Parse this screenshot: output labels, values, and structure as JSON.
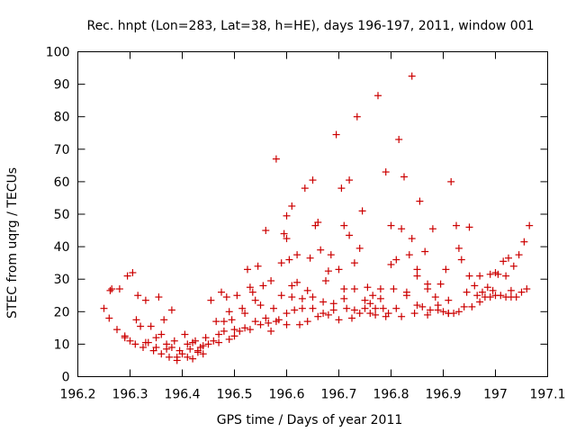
{
  "chart_data": {
    "type": "scatter",
    "title": "Rec. hnpt (Lon=283, Lat=38, h=HE), days 196-197, 2011, window 001",
    "xlabel": "GPS time / Days of year 2011",
    "ylabel": "STEC from uqrg / TECUs",
    "xlim": [
      196.2,
      197.1
    ],
    "ylim": [
      0,
      100
    ],
    "x_ticks": [
      196.2,
      196.3,
      196.4,
      196.5,
      196.6,
      196.7,
      196.8,
      196.9,
      197,
      197.1
    ],
    "x_tick_labels": [
      "196.2",
      "196.3",
      "196.4",
      "196.5",
      "196.6",
      "196.7",
      "196.8",
      "196.9",
      "197",
      "197.1"
    ],
    "y_ticks": [
      0,
      10,
      20,
      30,
      40,
      50,
      60,
      70,
      80,
      90,
      100
    ],
    "y_tick_labels": [
      "0",
      "10",
      "20",
      "30",
      "40",
      "50",
      "60",
      "70",
      "80",
      "90",
      "100"
    ],
    "grid": false,
    "legend": "none",
    "marker": "+",
    "marker_color": "#cc0000",
    "points": [
      [
        196.25,
        21
      ],
      [
        196.26,
        18
      ],
      [
        196.265,
        27
      ],
      [
        196.275,
        14.5
      ],
      [
        196.28,
        27
      ],
      [
        196.29,
        12
      ],
      [
        196.295,
        31
      ],
      [
        196.3,
        11
      ],
      [
        196.305,
        32
      ],
      [
        196.31,
        10
      ],
      [
        196.315,
        25
      ],
      [
        196.32,
        15.5
      ],
      [
        196.325,
        9
      ],
      [
        196.33,
        23.5
      ],
      [
        196.335,
        10.5
      ],
      [
        196.34,
        15.5
      ],
      [
        196.345,
        8
      ],
      [
        196.35,
        12
      ],
      [
        196.355,
        24.5
      ],
      [
        196.36,
        7
      ],
      [
        196.365,
        17.5
      ],
      [
        196.37,
        10
      ],
      [
        196.375,
        6
      ],
      [
        196.38,
        20.5
      ],
      [
        196.385,
        11
      ],
      [
        196.39,
        5
      ],
      [
        196.395,
        8
      ],
      [
        196.4,
        7
      ],
      [
        196.405,
        13
      ],
      [
        196.41,
        6
      ],
      [
        196.415,
        8.5
      ],
      [
        196.42,
        5.5
      ],
      [
        196.425,
        11
      ],
      [
        196.43,
        7.5
      ],
      [
        196.435,
        9
      ],
      [
        196.44,
        7
      ],
      [
        196.445,
        12
      ],
      [
        196.45,
        10
      ],
      [
        196.455,
        23.5
      ],
      [
        196.46,
        11
      ],
      [
        196.465,
        17
      ],
      [
        196.47,
        13
      ],
      [
        196.475,
        26
      ],
      [
        196.48,
        14
      ],
      [
        196.485,
        24.5
      ],
      [
        196.49,
        11.5
      ],
      [
        196.495,
        17.5
      ],
      [
        196.5,
        12.5
      ],
      [
        196.505,
        25
      ],
      [
        196.51,
        14
      ],
      [
        196.515,
        21
      ],
      [
        196.52,
        15
      ],
      [
        196.525,
        33
      ],
      [
        196.53,
        14.5
      ],
      [
        196.535,
        26
      ],
      [
        196.54,
        17
      ],
      [
        196.545,
        34
      ],
      [
        196.55,
        16
      ],
      [
        196.555,
        28
      ],
      [
        196.56,
        45
      ],
      [
        196.565,
        16.5
      ],
      [
        196.57,
        29.5
      ],
      [
        196.575,
        21
      ],
      [
        196.58,
        67
      ],
      [
        196.585,
        17.5
      ],
      [
        196.59,
        25
      ],
      [
        196.595,
        44
      ],
      [
        196.6,
        16
      ],
      [
        196.605,
        36
      ],
      [
        196.61,
        52.5
      ],
      [
        196.615,
        20.5
      ],
      [
        196.62,
        29
      ],
      [
        196.625,
        16
      ],
      [
        196.63,
        24
      ],
      [
        196.635,
        58
      ],
      [
        196.64,
        17
      ],
      [
        196.645,
        36.5
      ],
      [
        196.65,
        21
      ],
      [
        196.655,
        46.5
      ],
      [
        196.66,
        18.5
      ],
      [
        196.665,
        39
      ],
      [
        196.67,
        23
      ],
      [
        196.675,
        29.5
      ],
      [
        196.68,
        19
      ],
      [
        196.685,
        37.5
      ],
      [
        196.69,
        20.5
      ],
      [
        196.695,
        74.5
      ],
      [
        196.7,
        17.5
      ],
      [
        196.705,
        58
      ],
      [
        196.71,
        27
      ],
      [
        196.715,
        21
      ],
      [
        196.72,
        43.5
      ],
      [
        196.725,
        18
      ],
      [
        196.73,
        27
      ],
      [
        196.735,
        80
      ],
      [
        196.74,
        19.5
      ],
      [
        196.745,
        51
      ],
      [
        196.75,
        21
      ],
      [
        196.755,
        27.5
      ],
      [
        196.76,
        19.5
      ],
      [
        196.765,
        25
      ],
      [
        196.77,
        19
      ],
      [
        196.775,
        86.5
      ],
      [
        196.78,
        24
      ],
      [
        196.785,
        21
      ],
      [
        196.79,
        63
      ],
      [
        196.795,
        19.5
      ],
      [
        196.8,
        46.5
      ],
      [
        196.805,
        27
      ],
      [
        196.81,
        36
      ],
      [
        196.815,
        73
      ],
      [
        196.82,
        18.5
      ],
      [
        196.825,
        61.5
      ],
      [
        196.83,
        26
      ],
      [
        196.835,
        37.5
      ],
      [
        196.84,
        92.5
      ],
      [
        196.845,
        19.5
      ],
      [
        196.85,
        31
      ],
      [
        196.855,
        54
      ],
      [
        196.86,
        21.5
      ],
      [
        196.865,
        38.5
      ],
      [
        196.87,
        27
      ],
      [
        196.875,
        20.5
      ],
      [
        196.88,
        45.5
      ],
      [
        196.885,
        24.5
      ],
      [
        196.89,
        20.5
      ],
      [
        196.895,
        28.5
      ],
      [
        196.9,
        20
      ],
      [
        196.905,
        33
      ],
      [
        196.91,
        19.5
      ],
      [
        196.915,
        60
      ],
      [
        196.92,
        19.5
      ],
      [
        196.925,
        46.5
      ],
      [
        196.93,
        20
      ],
      [
        196.935,
        36
      ],
      [
        196.94,
        21.5
      ],
      [
        196.945,
        26
      ],
      [
        196.95,
        31
      ],
      [
        196.955,
        21.5
      ],
      [
        196.96,
        28
      ],
      [
        196.965,
        25
      ],
      [
        196.97,
        31
      ],
      [
        196.975,
        26
      ],
      [
        196.98,
        24.5
      ],
      [
        196.985,
        27.5
      ],
      [
        196.99,
        24.5
      ],
      [
        196.995,
        26.5
      ],
      [
        197.0,
        25
      ],
      [
        197.005,
        31.5
      ],
      [
        197.01,
        25
      ],
      [
        197.015,
        35.5
      ],
      [
        197.02,
        24.5
      ],
      [
        197.025,
        36.5
      ],
      [
        197.03,
        24.5
      ],
      [
        197.035,
        34
      ],
      [
        197.04,
        24.5
      ],
      [
        197.045,
        37.5
      ],
      [
        197.05,
        26
      ],
      [
        197.055,
        41.5
      ],
      [
        197.06,
        27
      ],
      [
        197.065,
        46.5
      ],
      [
        196.262,
        26.5
      ],
      [
        196.312,
        17.5
      ],
      [
        196.36,
        13
      ],
      [
        196.37,
        8.5
      ],
      [
        196.39,
        6
      ],
      [
        196.41,
        10
      ],
      [
        196.43,
        8
      ],
      [
        196.47,
        10.5
      ],
      [
        196.49,
        20
      ],
      [
        196.53,
        27.5
      ],
      [
        196.55,
        22
      ],
      [
        196.57,
        14
      ],
      [
        196.59,
        35
      ],
      [
        196.6,
        49.5
      ],
      [
        196.6,
        42.5
      ],
      [
        196.61,
        28
      ],
      [
        196.62,
        37.5
      ],
      [
        196.64,
        26.5
      ],
      [
        196.65,
        60.5
      ],
      [
        196.66,
        47.5
      ],
      [
        196.68,
        32.5
      ],
      [
        196.7,
        33
      ],
      [
        196.71,
        46.5
      ],
      [
        196.72,
        60.5
      ],
      [
        196.73,
        35
      ],
      [
        196.74,
        39.5
      ],
      [
        196.76,
        22.5
      ],
      [
        196.78,
        27
      ],
      [
        196.8,
        34.5
      ],
      [
        196.82,
        45.5
      ],
      [
        196.84,
        42.5
      ],
      [
        196.85,
        33
      ],
      [
        196.87,
        28.5
      ],
      [
        196.89,
        22
      ],
      [
        196.91,
        23.5
      ],
      [
        196.93,
        39.5
      ],
      [
        196.95,
        46
      ],
      [
        196.97,
        23
      ],
      [
        196.99,
        31.5
      ],
      [
        197.0,
        32
      ],
      [
        197.02,
        31
      ],
      [
        197.03,
        26.5
      ],
      [
        196.29,
        12.5
      ],
      [
        196.33,
        10.5
      ],
      [
        196.35,
        9
      ],
      [
        196.38,
        9
      ],
      [
        196.42,
        10.5
      ],
      [
        196.44,
        9.5
      ],
      [
        196.48,
        17
      ],
      [
        196.5,
        14.5
      ],
      [
        196.52,
        19.5
      ],
      [
        196.54,
        23.5
      ],
      [
        196.56,
        18
      ],
      [
        196.58,
        17
      ],
      [
        196.6,
        19.5
      ],
      [
        196.61,
        24.5
      ],
      [
        196.63,
        21
      ],
      [
        196.65,
        24.5
      ],
      [
        196.67,
        19.5
      ],
      [
        196.69,
        22.5
      ],
      [
        196.71,
        24
      ],
      [
        196.73,
        20.5
      ],
      [
        196.75,
        23.5
      ],
      [
        196.77,
        21
      ],
      [
        196.79,
        18.5
      ],
      [
        196.81,
        21
      ],
      [
        196.83,
        25
      ],
      [
        196.85,
        22
      ],
      [
        196.87,
        19
      ],
      [
        196.91,
        19.5
      ]
    ]
  }
}
